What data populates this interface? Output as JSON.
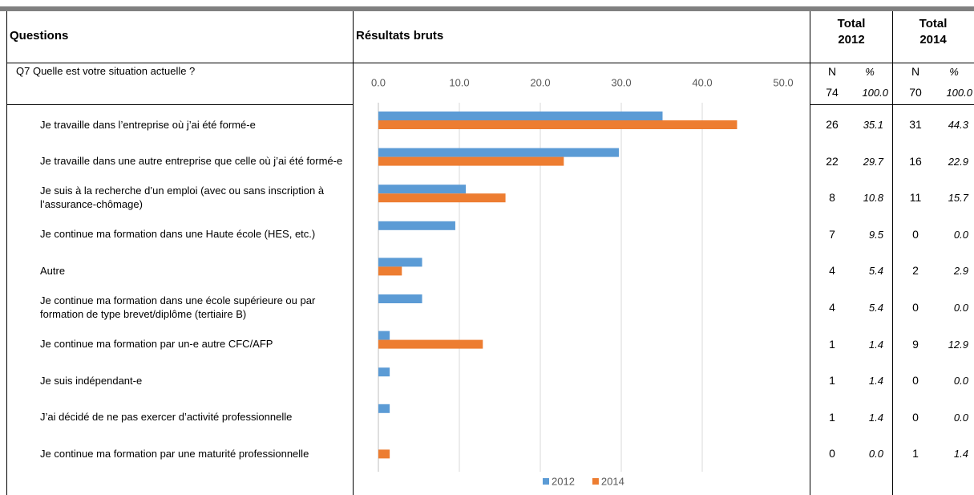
{
  "table": {
    "headers": {
      "questions": "Questions",
      "results": "Résultats bruts",
      "total_2012": "Total 2012",
      "total_2014": "Total 2014"
    },
    "question": "Q7  Quelle est votre situation actuelle ?",
    "n_label": "N",
    "pct_label": "%",
    "totals": {
      "n_2012": 74,
      "pct_2012": "100.0",
      "n_2014": 70,
      "pct_2014": "100.0"
    },
    "n_2012": [
      26,
      22,
      8,
      7,
      4,
      4,
      1,
      1,
      1,
      0
    ],
    "n_2014": [
      31,
      16,
      11,
      0,
      2,
      0,
      9,
      0,
      0,
      1
    ]
  },
  "chart_data": {
    "type": "bar",
    "orientation": "horizontal",
    "categories": [
      "Je travaille dans l’entreprise où j’ai été formé-e",
      "Je travaille dans une autre entreprise que celle où j’ai été formé-e",
      "Je suis à la recherche d’un emploi (avec ou sans inscription à l’assurance-chômage)",
      "Je continue ma formation dans une Haute école (HES, etc.)",
      "Autre",
      "Je continue ma formation dans une école supérieure ou par formation de type brevet/diplôme (tertiaire B)",
      "Je continue ma formation par un-e autre CFC/AFP",
      "Je suis indépendant-e",
      "J’ai décidé de ne pas exercer d’activité professionnelle",
      "Je continue ma formation par une maturité professionnelle"
    ],
    "series": [
      {
        "name": "2012",
        "color": "#5b9bd5",
        "values": [
          35.1,
          29.7,
          10.8,
          9.5,
          5.4,
          5.4,
          1.4,
          1.4,
          1.4,
          0.0
        ],
        "value_labels": [
          "35.1",
          "29.7",
          "10.8",
          "9.5",
          "5.4",
          "5.4",
          "1.4",
          "1.4",
          "1.4",
          "0.0"
        ]
      },
      {
        "name": "2014",
        "color": "#ed7d31",
        "values": [
          44.3,
          22.9,
          15.7,
          0.0,
          2.9,
          0.0,
          12.9,
          0.0,
          0.0,
          1.4
        ],
        "value_labels": [
          "44.3",
          "22.9",
          "15.7",
          "0.0",
          "2.9",
          "0.0",
          "12.9",
          "0.0",
          "0.0",
          "1.4"
        ]
      }
    ],
    "xlim": [
      0,
      50
    ],
    "xticks": [
      {
        "value": 0,
        "label": "0.0"
      },
      {
        "value": 10,
        "label": "10.0"
      },
      {
        "value": 20,
        "label": "20.0"
      },
      {
        "value": 30,
        "label": "30.0"
      },
      {
        "value": 40,
        "label": "40.0"
      },
      {
        "value": 50,
        "label": "50.0"
      }
    ],
    "grid": true,
    "legend": "bottom"
  }
}
